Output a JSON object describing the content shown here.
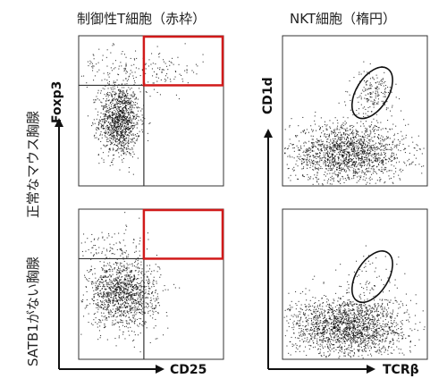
{
  "column_titles": {
    "treg": "制御性T細胞（赤枠）",
    "nkt": "NKT細胞（楕円）"
  },
  "row_labels": {
    "normal": "正常なマウス胸腺",
    "satb1": "SATB1がない胸腺"
  },
  "axes": {
    "treg_x": "CD25",
    "treg_y": "Foxp3",
    "nkt_x": "TCRβ",
    "nkt_y": "CD1d"
  },
  "colors": {
    "gate_rect": "#d11a1a",
    "gate_ellipse": "#111111",
    "dots": "#000000",
    "quadrant_lines": "#333333"
  },
  "chart_data": [
    {
      "type": "scatter",
      "title": "制御性T細胞（赤枠）",
      "row": "正常なマウス胸腺",
      "xlabel": "CD25",
      "ylabel": "Foxp3",
      "gate": {
        "shape": "rectangle",
        "quadrant": "upper-right",
        "color": "red"
      },
      "populations": [
        {
          "cx": 0.28,
          "cy": 0.44,
          "sx": 0.07,
          "sy": 0.12,
          "weight": 0.86
        },
        {
          "cx": 0.58,
          "cy": 0.77,
          "sx": 0.14,
          "sy": 0.07,
          "weight": 0.07
        },
        {
          "cx": 0.2,
          "cy": 0.8,
          "sx": 0.18,
          "sy": 0.06,
          "weight": 0.07
        }
      ],
      "quadrant_split": {
        "x": 0.45,
        "y": 0.67
      }
    },
    {
      "type": "scatter",
      "title": "NKT細胞（楕円）",
      "row": "正常なマウス胸腺",
      "xlabel": "TCRβ",
      "ylabel": "CD1d",
      "gate": {
        "shape": "ellipse",
        "color": "black"
      },
      "populations": [
        {
          "cx": 0.45,
          "cy": 0.22,
          "sx": 0.2,
          "sy": 0.1,
          "weight": 0.9
        },
        {
          "cx": 0.62,
          "cy": 0.62,
          "sx": 0.07,
          "sy": 0.07,
          "weight": 0.1
        }
      ]
    },
    {
      "type": "scatter",
      "title": "制御性T細胞（赤枠）",
      "row": "SATB1がない胸腺",
      "xlabel": "CD25",
      "ylabel": "Foxp3",
      "gate": {
        "shape": "rectangle",
        "quadrant": "upper-right",
        "color": "red"
      },
      "populations": [
        {
          "cx": 0.3,
          "cy": 0.44,
          "sx": 0.12,
          "sy": 0.11,
          "weight": 0.92
        },
        {
          "cx": 0.2,
          "cy": 0.75,
          "sx": 0.16,
          "sy": 0.07,
          "weight": 0.08
        }
      ],
      "quadrant_split": {
        "x": 0.45,
        "y": 0.67
      }
    },
    {
      "type": "scatter",
      "title": "NKT細胞（楕円）",
      "row": "SATB1がない胸腺",
      "xlabel": "TCRβ",
      "ylabel": "CD1d",
      "gate": {
        "shape": "ellipse",
        "color": "black"
      },
      "populations": [
        {
          "cx": 0.45,
          "cy": 0.22,
          "sx": 0.2,
          "sy": 0.1,
          "weight": 0.97
        },
        {
          "cx": 0.6,
          "cy": 0.55,
          "sx": 0.1,
          "sy": 0.1,
          "weight": 0.03
        }
      ]
    }
  ]
}
